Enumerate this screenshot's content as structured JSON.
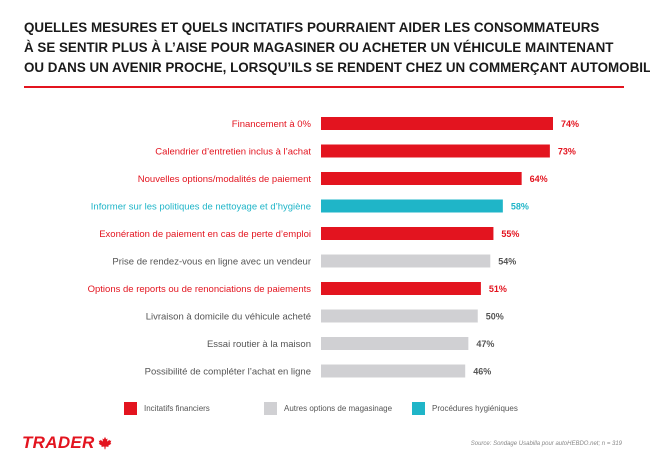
{
  "title_lines": [
    "QUELLES MESURES ET QUELS INCITATIFS POURRAIENT AIDER LES CONSOMMATEURS",
    "À SE SENTIR PLUS À L’AISE POUR MAGASINER OU ACHETER UN VÉHICULE MAINTENANT",
    "OU DANS UN AVENIR PROCHE, LORSQU’ILS SE RENDENT CHEZ UN COMMERÇANT AUTOMOBILE?"
  ],
  "colors": {
    "financier": "#e3141f",
    "autres": "#d0d0d3",
    "hygiene": "#1fb5c8",
    "title_rule": "#e3141f"
  },
  "chart_data": {
    "type": "bar",
    "orientation": "horizontal",
    "categories": [
      "Financement à 0%",
      "Calendrier d’entretien inclus à l’achat",
      "Nouvelles options/modalités de paiement",
      "Informer sur les politiques de nettoyage et d’hygiène",
      "Exonération de paiement en cas de perte d’emploi",
      "Prise de rendez-vous en ligne avec un vendeur",
      "Options de reports ou de renonciations de paiements",
      "Livraison à domicile du véhicule acheté",
      "Essai routier à la maison",
      "Possibilité de compléter l’achat en ligne"
    ],
    "values": [
      74,
      73,
      64,
      58,
      55,
      54,
      51,
      50,
      47,
      46
    ],
    "value_labels": [
      "74%",
      "73%",
      "64%",
      "58%",
      "55%",
      "54%",
      "51%",
      "50%",
      "47%",
      "46%"
    ],
    "groups": [
      "financier",
      "financier",
      "financier",
      "hygiene",
      "financier",
      "autres",
      "financier",
      "autres",
      "autres",
      "autres"
    ],
    "xlim": [
      0,
      74
    ],
    "grid": false,
    "legend": {
      "placement": "bottom",
      "entries": [
        {
          "key": "financier",
          "label": "Incitatifs financiers"
        },
        {
          "key": "autres",
          "label": "Autres options de magasinage"
        },
        {
          "key": "hygiene",
          "label": "Procédures hygiéniques"
        }
      ]
    }
  },
  "logo": {
    "text": "TRADER",
    "icon": "maple-leaf-icon"
  },
  "source": "Source: Sondage Usabilla pour autoHEBDO.net; n = 319"
}
